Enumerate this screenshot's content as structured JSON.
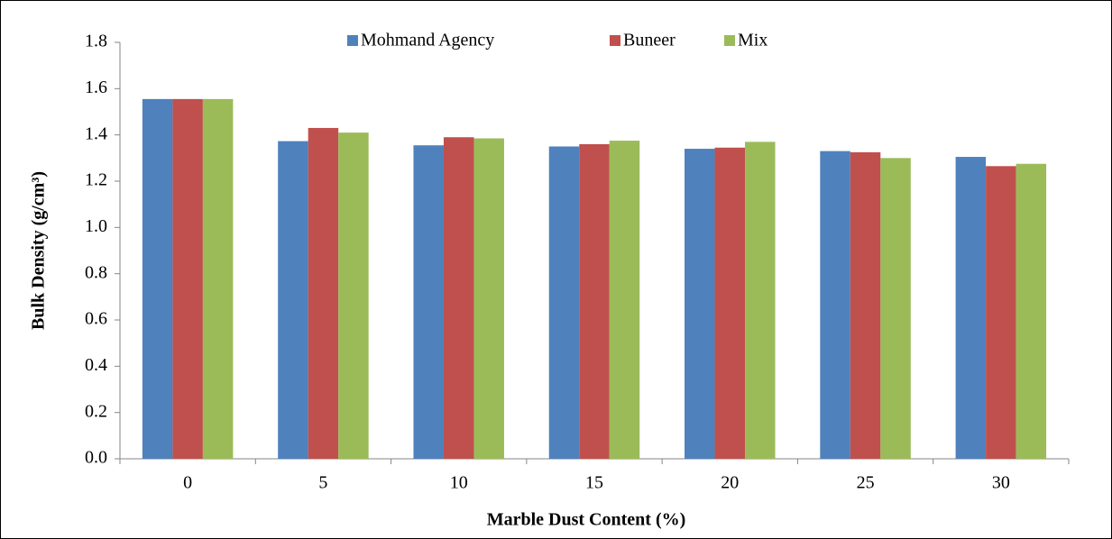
{
  "chart_data": {
    "type": "bar",
    "x_label": "Marble Dust Content (%)",
    "y_label": "Bulk Density (g/cm³)",
    "categories": [
      "0",
      "5",
      "10",
      "15",
      "20",
      "25",
      "30"
    ],
    "series": [
      {
        "name": "Mohmand Agency",
        "color": "#4f81bd",
        "values": [
          1.555,
          1.373,
          1.355,
          1.35,
          1.34,
          1.33,
          1.305
        ]
      },
      {
        "name": "Buneer",
        "color": "#c0504d",
        "values": [
          1.555,
          1.43,
          1.39,
          1.36,
          1.345,
          1.325,
          1.265
        ]
      },
      {
        "name": "Mix",
        "color": "#9bbb59",
        "values": [
          1.555,
          1.41,
          1.385,
          1.375,
          1.37,
          1.3,
          1.275
        ]
      }
    ],
    "ylim": [
      0,
      1.8
    ],
    "yticks": [
      {
        "value": 0,
        "label": "0.0"
      },
      0.2,
      0.4,
      0.6,
      0.8,
      {
        "value": 1,
        "label": "1.0"
      },
      1.2,
      1.4,
      1.6,
      1.8
    ],
    "grid": false,
    "legend": "top"
  }
}
